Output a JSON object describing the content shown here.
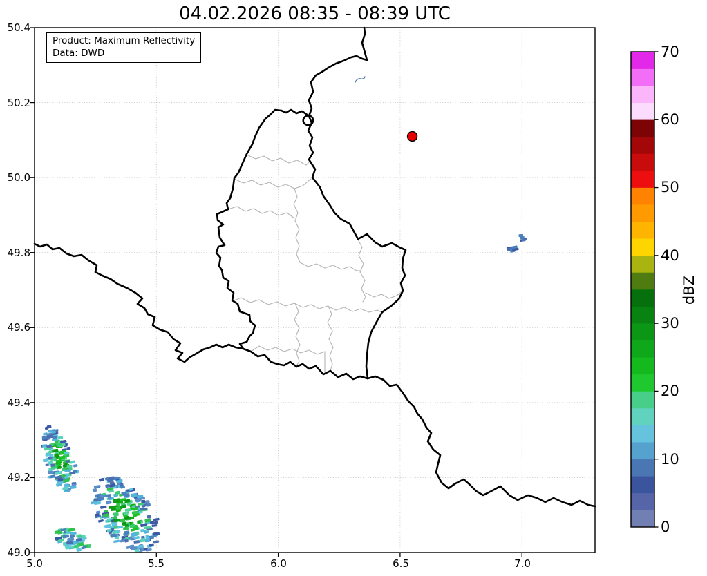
{
  "title": "04.02.2026 08:35 - 08:39 UTC",
  "info_box": {
    "line1": "Product: Maximum Reflectivity",
    "line2": "Data: DWD"
  },
  "axes": {
    "x_tick_labels": [
      "5.0",
      "5.5",
      "6.0",
      "6.5",
      "7.0"
    ],
    "x_tick_lons": [
      5.0,
      5.5,
      6.0,
      6.5,
      7.0
    ],
    "y_tick_labels": [
      "50.4",
      "50.2",
      "50.0",
      "49.8",
      "49.6",
      "49.4",
      "49.2",
      "49.0"
    ],
    "y_tick_lats": [
      50.4,
      50.2,
      50.0,
      49.8,
      49.6,
      49.4,
      49.2,
      49.0
    ],
    "lon_range": [
      5.0,
      7.3
    ],
    "lat_range": [
      49.0,
      50.4
    ]
  },
  "colorbar": {
    "label": "dBZ",
    "tick_labels": [
      "0",
      "10",
      "20",
      "30",
      "40",
      "50",
      "60",
      "70"
    ],
    "tick_values": [
      0,
      10,
      20,
      30,
      40,
      50,
      60,
      70
    ],
    "range": [
      0,
      70
    ],
    "step": 2.5,
    "colors_low_to_high": [
      "#717fb2",
      "#5565a8",
      "#3b549e",
      "#4a77b4",
      "#55a2ce",
      "#65c3de",
      "#60d2be",
      "#47cf8a",
      "#1ec82e",
      "#14b91e",
      "#0fa81a",
      "#0b9715",
      "#088311",
      "#06700d",
      "#4e7c10",
      "#a9b410",
      "#ffd500",
      "#ffb400",
      "#ff9a00",
      "#ff8300",
      "#ed0f0f",
      "#c80b0b",
      "#a30707",
      "#7c0404",
      "#fcdcfc",
      "#fbb5fb",
      "#f36ef6",
      "#e228e8"
    ]
  },
  "radar_site": {
    "lon": 6.55,
    "lat": 50.11,
    "color": "#e40000"
  },
  "precipitation": {
    "palettes": {
      "greens": [
        "#12ad19",
        "#1cc226",
        "#0e9a14"
      ],
      "greens_light": [
        "#3ecb78",
        "#52d39c",
        "#2fc24d"
      ],
      "teals": [
        "#5ad2c4",
        "#5fc3e0",
        "#54b4da"
      ],
      "blues": [
        "#3c58a4",
        "#4c6fb0",
        "#5b8ec6",
        "#4a80bc"
      ]
    },
    "clusters": [
      {
        "name": "band-southwest-1",
        "lon": 5.1,
        "lat": 49.25,
        "len": 98,
        "wid": 42,
        "angle": 72,
        "n": 125,
        "seed": 7,
        "mix": "mixed"
      },
      {
        "name": "band-southwest-2",
        "lon": 5.375,
        "lat": 49.1,
        "len": 124,
        "wid": 74,
        "angle": 55,
        "n": 240,
        "seed": 13,
        "mix": "mixed"
      },
      {
        "name": "band-southwest-3",
        "lon": 5.155,
        "lat": 49.035,
        "len": 52,
        "wid": 27,
        "angle": 25,
        "n": 52,
        "seed": 29,
        "mix": "teal"
      },
      {
        "name": "echo-east-1",
        "lon": 7.0,
        "lat": 49.838,
        "len": 14,
        "wid": 6,
        "angle": 35,
        "n": 5,
        "seed": 5,
        "mix": "blue"
      },
      {
        "name": "echo-east-2",
        "lon": 6.965,
        "lat": 49.81,
        "len": 16,
        "wid": 7,
        "angle": 35,
        "n": 6,
        "seed": 9,
        "mix": "blue"
      }
    ]
  }
}
